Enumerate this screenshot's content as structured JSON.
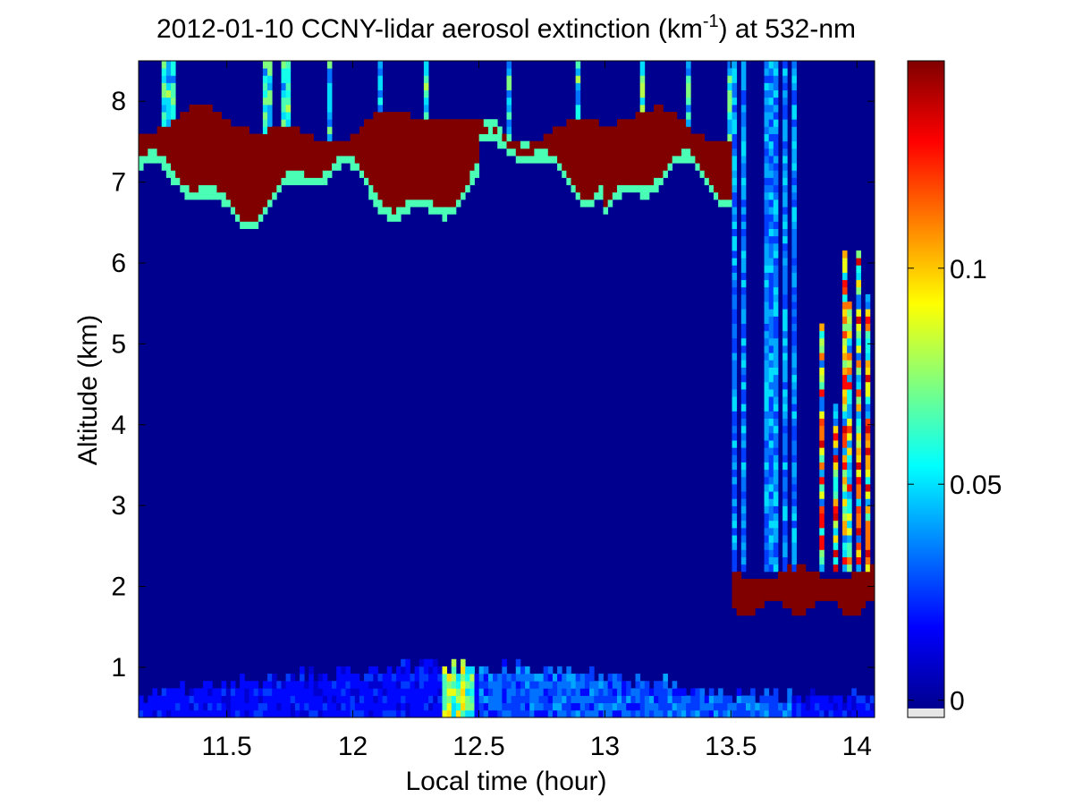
{
  "chart_data": {
    "type": "heatmap",
    "title": "2012-01-10 CCNY-lidar aerosol extinction (km",
    "title_superscript": "-1",
    "title_suffix": ") at 532-nm",
    "xlabel": "Local time (hour)",
    "ylabel": "Altitude (km)",
    "xlim": [
      11.15,
      14.07
    ],
    "ylim": [
      0.38,
      8.5
    ],
    "x_ticks": [
      11.5,
      12,
      12.5,
      13,
      13.5,
      14
    ],
    "x_tick_labels": [
      "11.5",
      "12",
      "12.5",
      "13",
      "13.5",
      "14"
    ],
    "y_ticks": [
      1,
      2,
      3,
      4,
      5,
      6,
      7,
      8
    ],
    "y_tick_labels": [
      "1",
      "2",
      "3",
      "4",
      "5",
      "6",
      "7",
      "8"
    ],
    "colorbar": {
      "colormap": "jet",
      "range": [
        -0.004,
        0.148
      ],
      "ticks": [
        0,
        0.05,
        0.1
      ],
      "tick_labels": [
        "0",
        "0.05",
        "0.1"
      ]
    },
    "features": {
      "cirrus_layer": {
        "time_range": [
          11.15,
          13.5
        ],
        "base_km": [
          6.9,
          7.3
        ],
        "top_km": [
          7.6,
          8.0
        ]
      },
      "low_cloud": {
        "time_range": [
          13.5,
          14.07
        ],
        "base_km": [
          1.7,
          1.9
        ],
        "top_km": [
          2.0,
          2.3
        ]
      },
      "boundary_layer": {
        "top_km": [
          0.5,
          1.2
        ],
        "typical_extinction": 0.03
      },
      "precipitation_streaks": {
        "time_range": [
          13.78,
          14.07
        ],
        "altitude_km": [
          2.2,
          6.5
        ]
      }
    },
    "grid": false
  }
}
